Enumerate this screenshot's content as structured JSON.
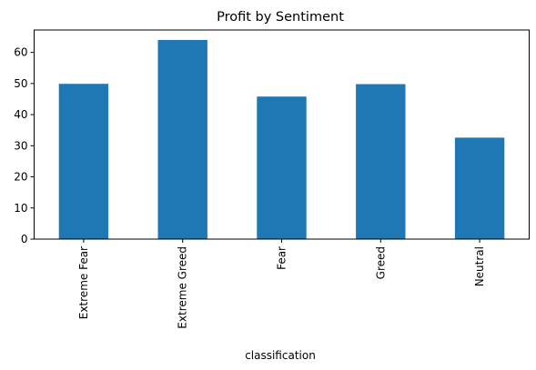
{
  "chart_data": {
    "type": "bar",
    "title": "Profit by Sentiment",
    "xlabel": "classification",
    "ylabel": "",
    "categories": [
      "Extreme Fear",
      "Extreme Greed",
      "Fear",
      "Greed",
      "Neutral"
    ],
    "values": [
      49.9,
      64.0,
      45.8,
      49.8,
      32.6
    ],
    "ylim": [
      0,
      67.2
    ],
    "yticks": [
      0,
      10,
      20,
      30,
      40,
      50,
      60
    ],
    "bar_color": "#1f77b4",
    "grid": false,
    "legend": "none"
  }
}
